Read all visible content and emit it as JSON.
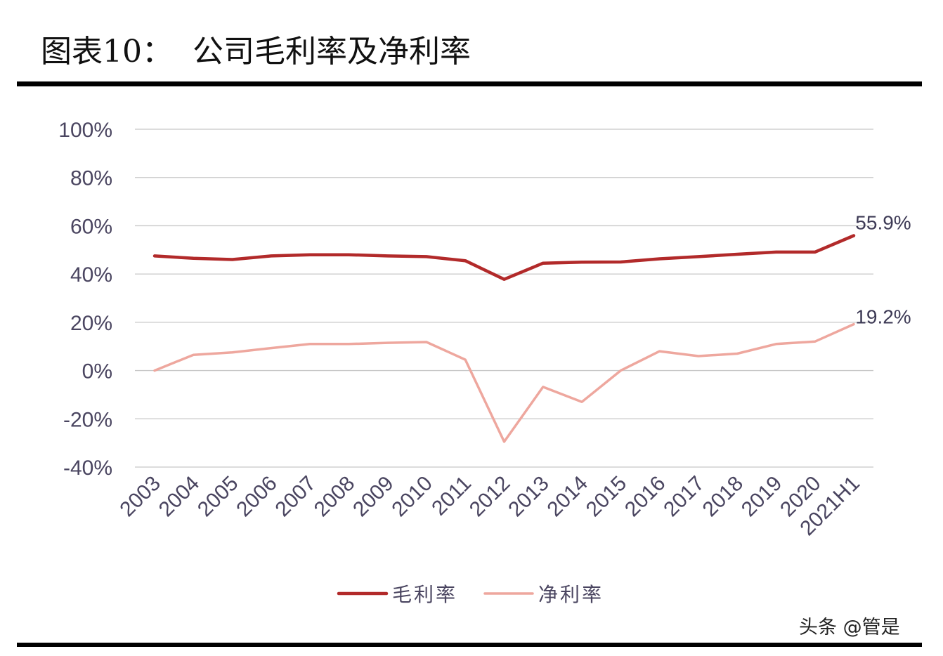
{
  "title": "图表10：  公司毛利率及净利率",
  "watermark": "头条 @管是",
  "chart_data": {
    "type": "line",
    "categories": [
      "2003",
      "2004",
      "2005",
      "2006",
      "2007",
      "2008",
      "2009",
      "2010",
      "2011",
      "2012",
      "2013",
      "2014",
      "2015",
      "2016",
      "2017",
      "2018",
      "2019",
      "2020",
      "2021H1"
    ],
    "ylim": [
      -40,
      100
    ],
    "y_ticks": [
      -40,
      -20,
      0,
      20,
      40,
      60,
      80,
      100
    ],
    "y_tick_labels": [
      "-40%",
      "-20%",
      "0%",
      "20%",
      "40%",
      "60%",
      "80%",
      "100%"
    ],
    "grid": true,
    "legend_position": "bottom",
    "series": [
      {
        "name": "毛利率",
        "color": "#b22a2a",
        "values": [
          47.5,
          46.5,
          46,
          47.5,
          48,
          48,
          47.5,
          47.2,
          45.5,
          37.8,
          44.5,
          44.9,
          45,
          46.3,
          47.2,
          48.2,
          49.1,
          49.1,
          55.9
        ],
        "end_label": "55.9%"
      },
      {
        "name": "净利率",
        "color": "#eea79e",
        "values": [
          0,
          6.5,
          7.5,
          9.3,
          11,
          11,
          11.5,
          11.8,
          4.5,
          -29.5,
          -6.8,
          -13,
          0,
          8,
          6,
          7,
          11,
          12,
          19.2
        ],
        "end_label": "19.2%"
      }
    ]
  }
}
